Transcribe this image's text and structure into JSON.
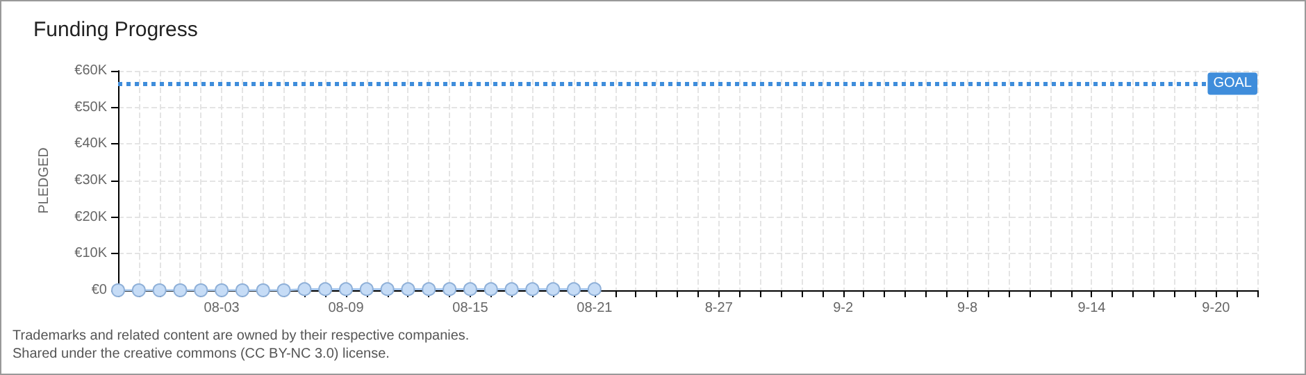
{
  "chart_data": {
    "type": "line",
    "title": "Funding Progress",
    "ylabel": "PLEDGED",
    "categories": [
      null,
      null,
      null,
      null,
      null,
      "08-03",
      null,
      null,
      null,
      null,
      null,
      "08-09",
      null,
      null,
      null,
      null,
      null,
      "08-15",
      null,
      null,
      null,
      null,
      null,
      "08-21",
      null,
      null,
      null,
      null,
      null,
      "8-27",
      null,
      null,
      null,
      null,
      null,
      "9-2",
      null,
      null,
      null,
      null,
      null,
      "9-8",
      null,
      null,
      null,
      null,
      null,
      "9-14",
      null,
      null,
      null,
      null,
      null,
      "9-20",
      null,
      null
    ],
    "series": [
      {
        "color": "#c6dcf6",
        "values": [
          0,
          0,
          0,
          0,
          0,
          0,
          0,
          0,
          0,
          300,
          300,
          300,
          300,
          300,
          300,
          300,
          300,
          300,
          300,
          300,
          300,
          300,
          300,
          300,
          null,
          null,
          null,
          null,
          null,
          null,
          null,
          null,
          null,
          null,
          null,
          null,
          null,
          null,
          null,
          null,
          null,
          null,
          null,
          null,
          null,
          null,
          null,
          null,
          null,
          null,
          null,
          null,
          null,
          null,
          null,
          null
        ]
      }
    ],
    "ylim": [
      0,
      60000
    ],
    "yticks": [
      {
        "value": 0,
        "label": "€0"
      },
      {
        "value": 10000,
        "label": "€10K"
      },
      {
        "value": 20000,
        "label": "€20K"
      },
      {
        "value": 30000,
        "label": "€30K"
      },
      {
        "value": 40000,
        "label": "€40K"
      },
      {
        "value": 50000,
        "label": "€50K"
      },
      {
        "value": 60000,
        "label": "€60K"
      }
    ],
    "ref_lines": [
      {
        "axis": "y",
        "value": 56500,
        "label": "GOAL",
        "color": "#3f8ddb",
        "line_style": "dotted"
      }
    ],
    "grid": true,
    "marker": "circle",
    "line_style": "solid",
    "annotations": [
      "Trademarks and related content are owned by their respective companies.",
      "Shared under the creative commons (CC BY-NC 3.0) license."
    ]
  }
}
